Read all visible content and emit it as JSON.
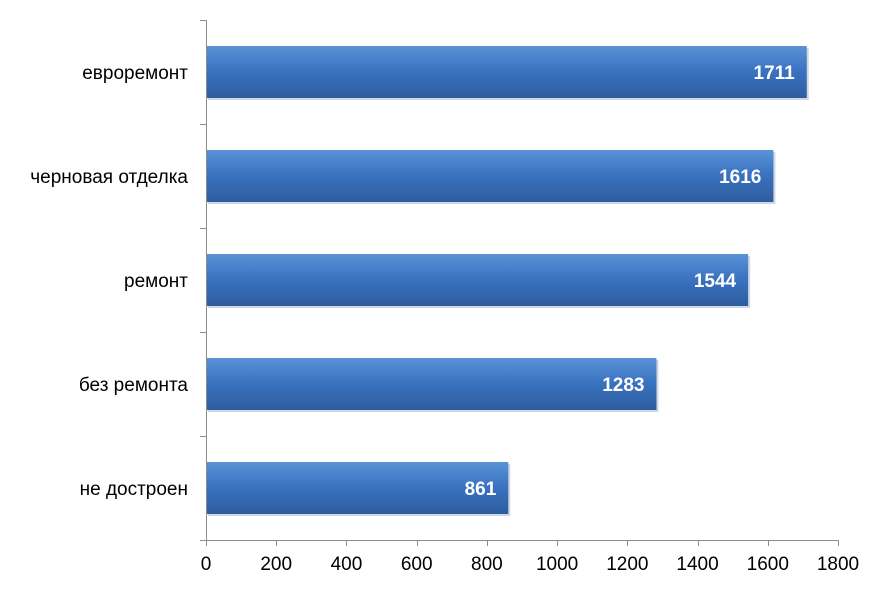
{
  "chart_data": {
    "type": "bar",
    "orientation": "horizontal",
    "categories": [
      "евроремонт",
      "черновая отделка",
      "ремонт",
      "без ремонта",
      "не достроен"
    ],
    "values": [
      1711,
      1616,
      1544,
      1283,
      861
    ],
    "data_labels": [
      "1711",
      "1616",
      "1544",
      "1283",
      "861"
    ],
    "xlim": [
      0,
      1800
    ],
    "x_ticks": [
      0,
      200,
      400,
      600,
      800,
      1000,
      1200,
      1400,
      1600,
      1800
    ],
    "x_tick_labels": [
      "0",
      "200",
      "400",
      "600",
      "800",
      "1000",
      "1200",
      "1400",
      "1600",
      "1800"
    ],
    "title": "",
    "xlabel": "",
    "ylabel": "",
    "grid": false,
    "legend": "none",
    "colors": {
      "bar_top": "#4f86cf",
      "bar_bottom": "#2e5d9f",
      "bar_highlight": "#5b93d8",
      "axis": "#8c8c8c",
      "data_label": "#ffffff",
      "text": "#000000"
    }
  }
}
